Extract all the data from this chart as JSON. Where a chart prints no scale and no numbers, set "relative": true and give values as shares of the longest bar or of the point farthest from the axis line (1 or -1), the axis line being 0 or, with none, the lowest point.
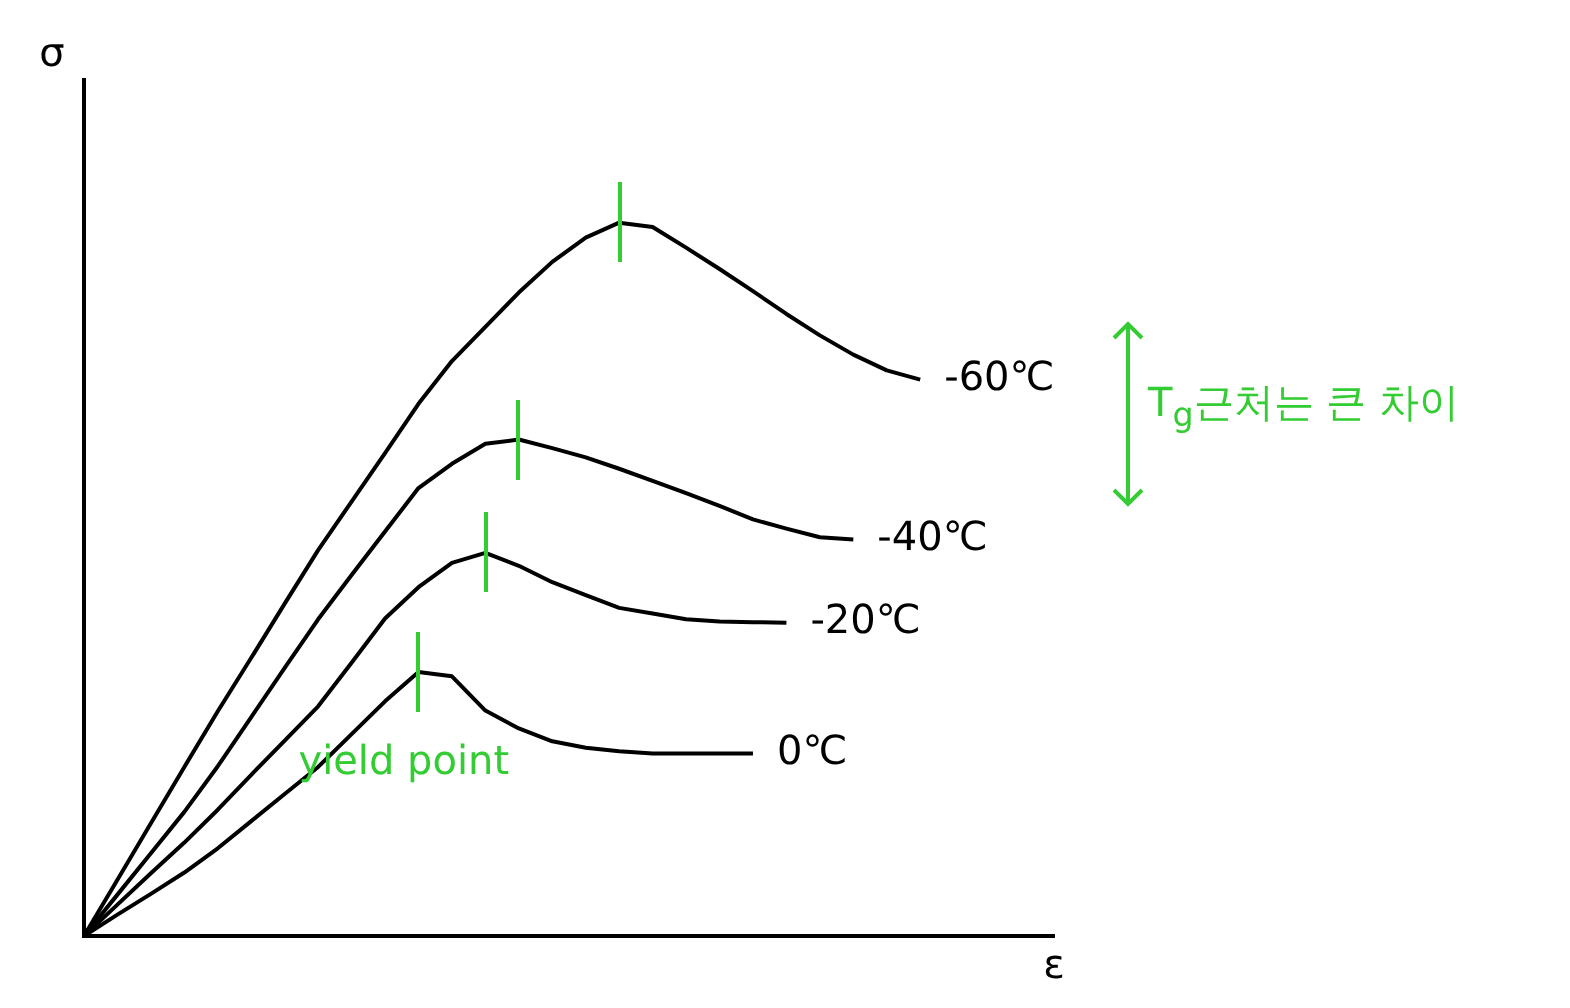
{
  "chart_data": {
    "type": "line",
    "relative": true,
    "xlabel": "ε",
    "ylabel": "σ",
    "legend": false,
    "grid": false,
    "annotations": [
      "yield point",
      "T$_{g}$근처는 큰 차이"
    ],
    "categories": [
      null,
      null,
      null,
      null,
      null,
      null,
      null,
      null,
      null,
      null,
      null,
      null,
      null,
      null,
      null,
      null,
      null,
      null,
      null,
      null,
      null,
      null,
      null,
      null,
      null,
      null,
      null,
      null,
      null,
      null
    ],
    "series": [
      {
        "name": "-60℃",
        "color": "#000000",
        "values": [
          0,
          0.079,
          0.158,
          0.237,
          0.315,
          0.39,
          0.466,
          0.541,
          0.609,
          0.677,
          0.746,
          0.806,
          0.854,
          0.902,
          0.945,
          0.979,
          1,
          0.994,
          0.965,
          0.935,
          0.904,
          0.872,
          0.842,
          0.815,
          0.793,
          0.78,
          null,
          null,
          null,
          null
        ]
      },
      {
        "name": "-40℃",
        "color": "#000000",
        "values": [
          0,
          0.058,
          0.116,
          0.174,
          0.238,
          0.307,
          0.376,
          0.444,
          0.506,
          0.567,
          0.628,
          0.662,
          0.69,
          0.696,
          0.684,
          0.671,
          0.655,
          0.638,
          0.621,
          0.603,
          0.584,
          0.571,
          0.559,
          0.556,
          null,
          null,
          null,
          null,
          null,
          null
        ]
      },
      {
        "name": "-20℃",
        "color": "#000000",
        "values": [
          0,
          0.044,
          0.088,
          0.131,
          0.177,
          0.226,
          0.274,
          0.322,
          0.383,
          0.445,
          0.489,
          0.523,
          0.537,
          0.519,
          0.496,
          0.478,
          0.46,
          0.452,
          0.444,
          0.441,
          0.44,
          0.439,
          null,
          null,
          null,
          null,
          null,
          null,
          null,
          null
        ]
      },
      {
        "name": "0℃",
        "color": "#000000",
        "values": [
          0,
          0.03,
          0.059,
          0.089,
          0.123,
          0.161,
          0.199,
          0.237,
          0.283,
          0.329,
          0.37,
          0.364,
          0.316,
          0.291,
          0.273,
          0.264,
          0.259,
          0.256,
          0.256,
          0.256,
          0.256,
          null,
          null,
          null,
          null,
          null,
          null,
          null,
          null,
          null
        ]
      }
    ]
  }
}
